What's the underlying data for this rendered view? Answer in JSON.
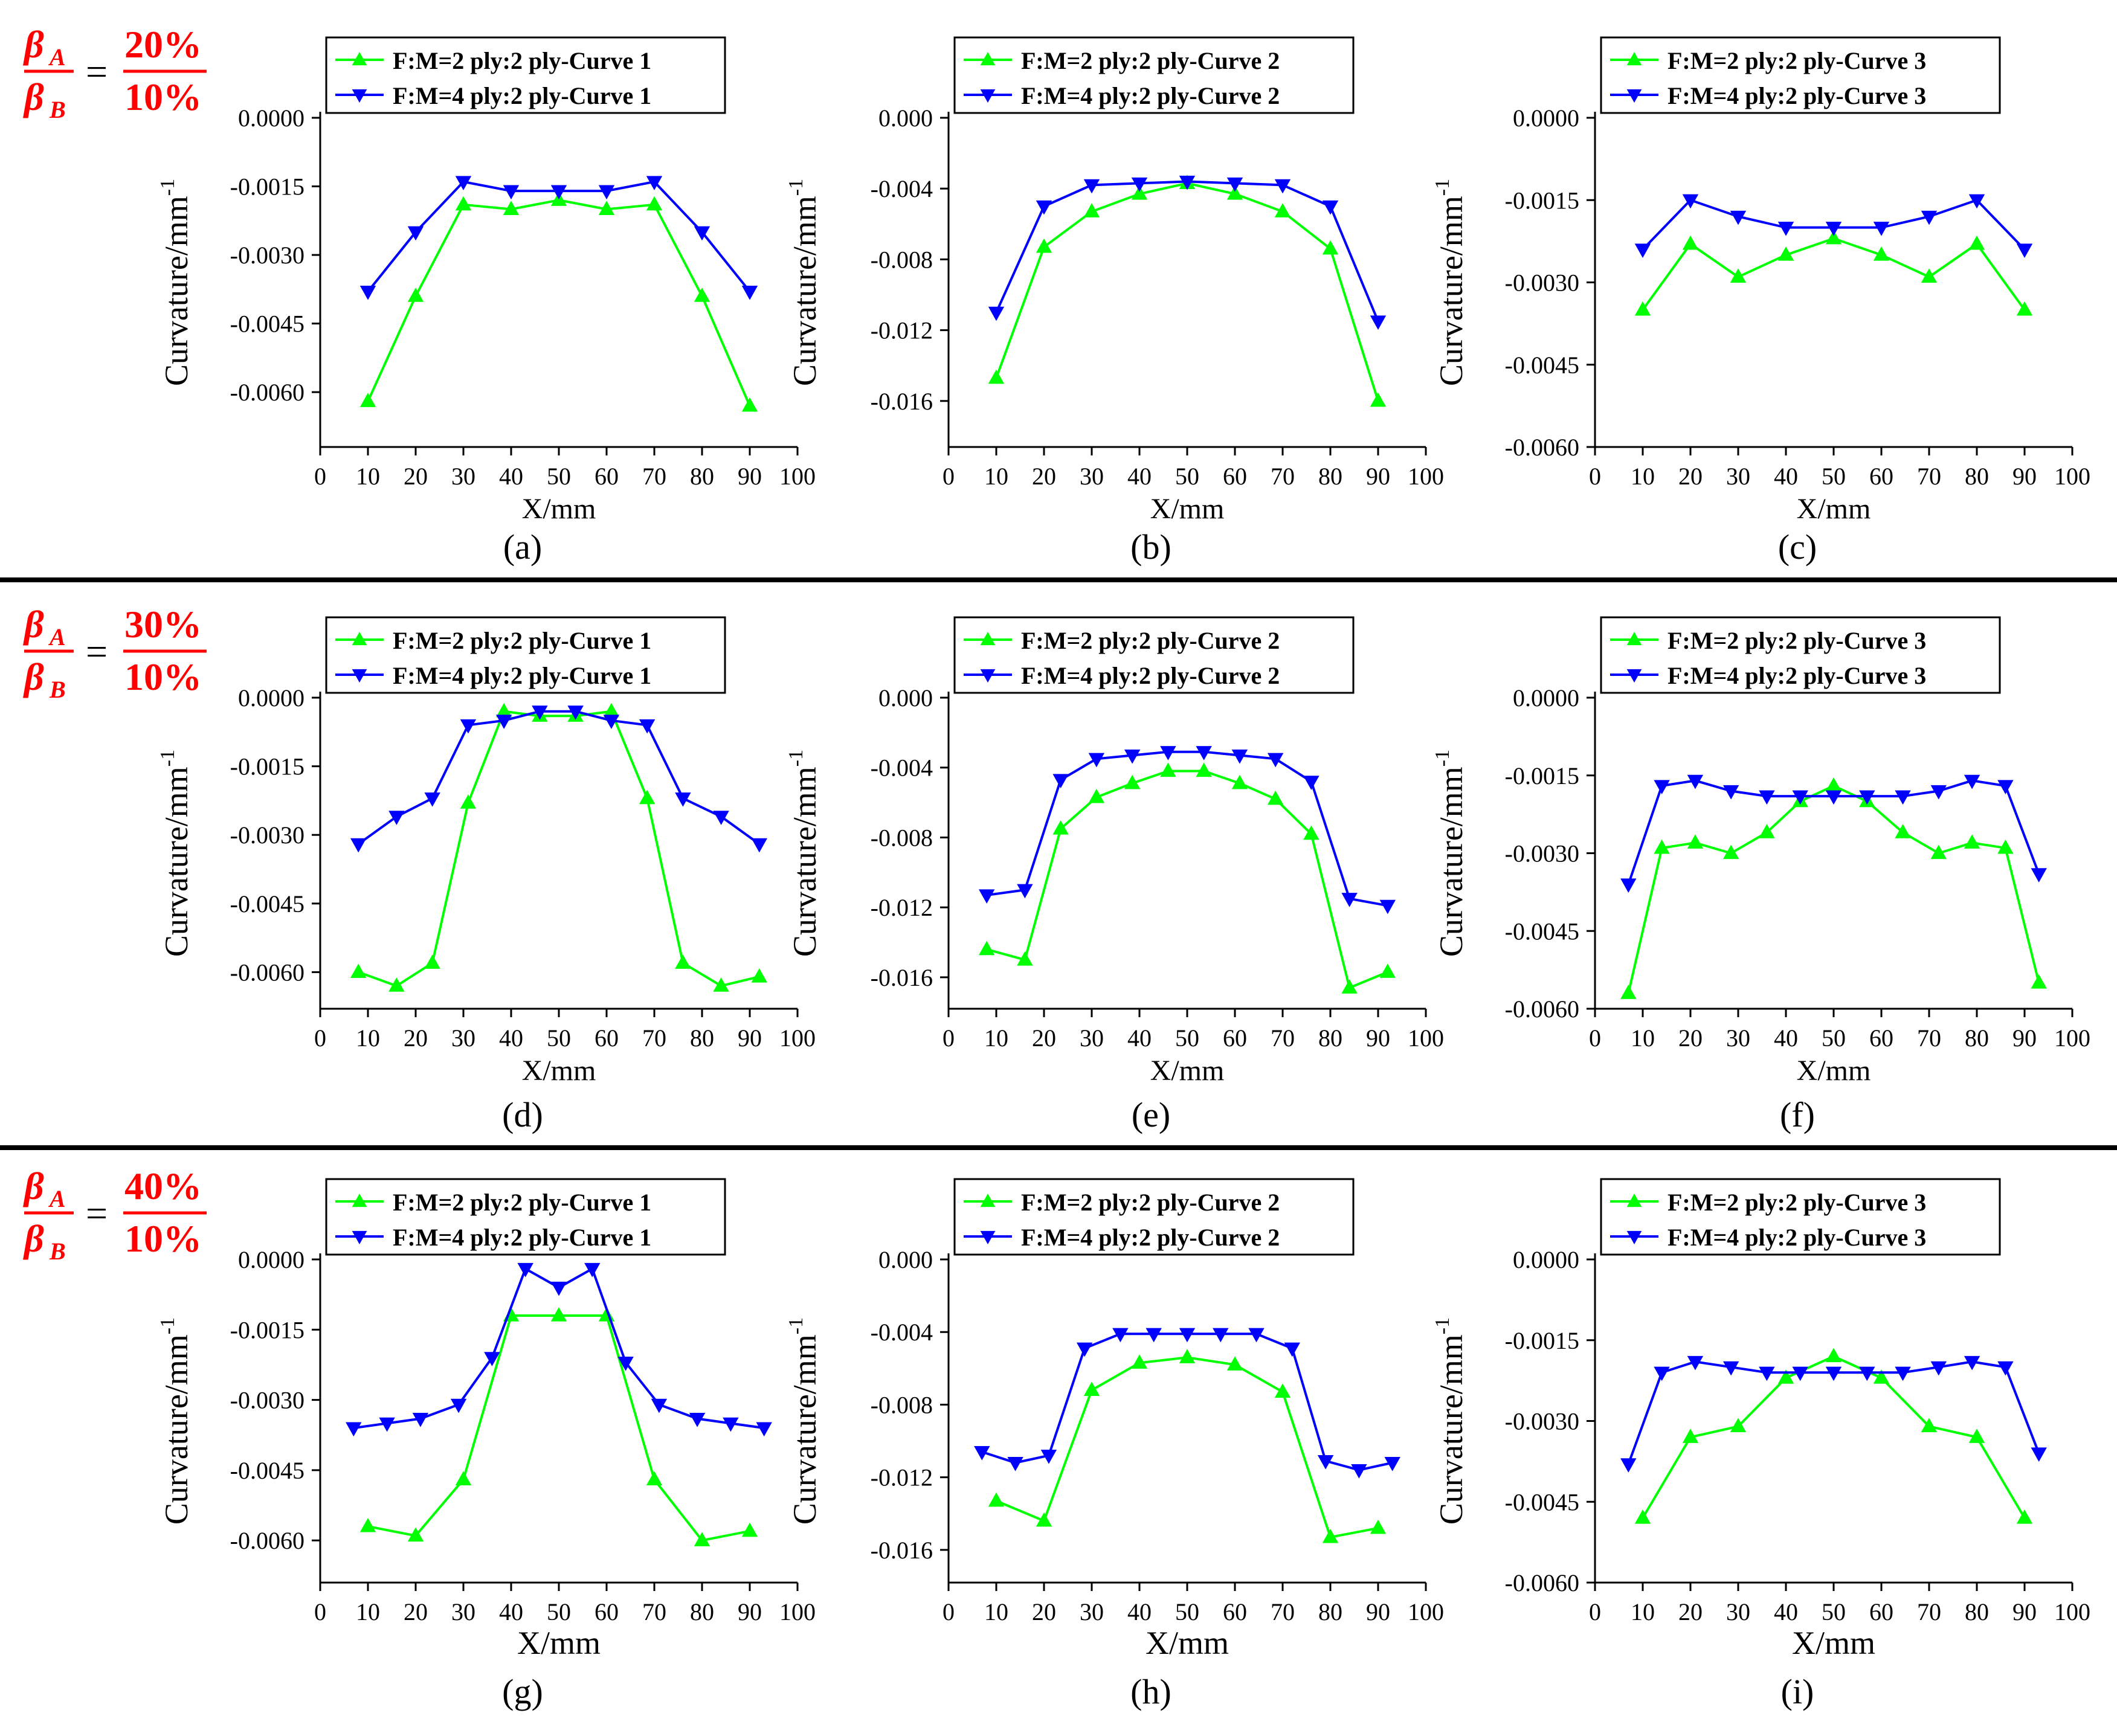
{
  "figure": {
    "rows": [
      {
        "ratio": {
          "num_symbol": "β",
          "num_sub": "A",
          "den_symbol": "β",
          "den_sub": "B",
          "eq": "=",
          "num_value": "20%",
          "den_value": "10%"
        }
      },
      {
        "ratio": {
          "num_symbol": "β",
          "num_sub": "A",
          "den_symbol": "β",
          "den_sub": "B",
          "eq": "=",
          "num_value": "30%",
          "den_value": "10%"
        }
      },
      {
        "ratio": {
          "num_symbol": "β",
          "num_sub": "A",
          "den_symbol": "β",
          "den_sub": "B",
          "eq": "=",
          "num_value": "40%",
          "den_value": "10%"
        }
      }
    ],
    "colors": {
      "green": "#00ff00",
      "blue": "#0000ff",
      "ratio": "#ff0000",
      "axis": "#000000"
    }
  },
  "chart_data": [
    {
      "panel": "(a)",
      "type": "line",
      "xlabel": "X/mm",
      "ylabel": "Curvature/mm",
      "ylabel_sup": "-1",
      "xlim": [
        0,
        100
      ],
      "ylim": [
        -0.0072,
        0.0
      ],
      "xticks": [
        0,
        10,
        20,
        30,
        40,
        50,
        60,
        70,
        80,
        90,
        100
      ],
      "yticks": [
        0.0,
        -0.0015,
        -0.003,
        -0.0045,
        -0.006
      ],
      "ytick_labels": [
        "0.0000",
        "-0.0015",
        "-0.0030",
        "-0.0045",
        "-0.0060"
      ],
      "series": [
        {
          "name": "F:M=2 ply:2 ply-Curve 1",
          "color": "#00ff00",
          "marker": "triangle-up",
          "x": [
            10,
            20,
            30,
            40,
            50,
            60,
            70,
            80,
            90
          ],
          "y": [
            -0.0062,
            -0.0039,
            -0.0019,
            -0.002,
            -0.0018,
            -0.002,
            -0.0019,
            -0.0039,
            -0.0063
          ]
        },
        {
          "name": "F:M=4 ply:2 ply-Curve 1",
          "color": "#0000ff",
          "marker": "triangle-down",
          "x": [
            10,
            20,
            30,
            40,
            50,
            60,
            70,
            80,
            90
          ],
          "y": [
            -0.0038,
            -0.0025,
            -0.0014,
            -0.0016,
            -0.0016,
            -0.0016,
            -0.0014,
            -0.0025,
            -0.0038
          ]
        }
      ]
    },
    {
      "panel": "(b)",
      "type": "line",
      "xlabel": "X/mm",
      "ylabel": "Curvature/mm",
      "ylabel_sup": "-1",
      "xlim": [
        0,
        100
      ],
      "ylim": [
        -0.0186,
        0.0
      ],
      "xticks": [
        0,
        10,
        20,
        30,
        40,
        50,
        60,
        70,
        80,
        90,
        100
      ],
      "yticks": [
        0.0,
        -0.004,
        -0.008,
        -0.012,
        -0.016
      ],
      "ytick_labels": [
        "0.000",
        "-0.004",
        "-0.008",
        "-0.012",
        "-0.016"
      ],
      "series": [
        {
          "name": "F:M=2 ply:2 ply-Curve 2",
          "color": "#00ff00",
          "marker": "triangle-up",
          "x": [
            10,
            20,
            30,
            40,
            50,
            60,
            70,
            80,
            90
          ],
          "y": [
            -0.0147,
            -0.0073,
            -0.0053,
            -0.0043,
            -0.0037,
            -0.0043,
            -0.0053,
            -0.0074,
            -0.016
          ]
        },
        {
          "name": "F:M=4 ply:2 ply-Curve 2",
          "color": "#0000ff",
          "marker": "triangle-down",
          "x": [
            10,
            20,
            30,
            40,
            50,
            60,
            70,
            80,
            90
          ],
          "y": [
            -0.011,
            -0.005,
            -0.0038,
            -0.0037,
            -0.0036,
            -0.0037,
            -0.0038,
            -0.005,
            -0.0115
          ]
        }
      ]
    },
    {
      "panel": "(c)",
      "type": "line",
      "xlabel": "X/mm",
      "ylabel": "Curvature/mm",
      "ylabel_sup": "-1",
      "xlim": [
        0,
        100
      ],
      "ylim": [
        -0.006,
        0.0
      ],
      "xticks": [
        0,
        10,
        20,
        30,
        40,
        50,
        60,
        70,
        80,
        90,
        100
      ],
      "yticks": [
        0.0,
        -0.0015,
        -0.003,
        -0.0045,
        -0.006
      ],
      "ytick_labels": [
        "0.0000",
        "-0.0015",
        "-0.0030",
        "-0.0045",
        "-0.0060"
      ],
      "series": [
        {
          "name": "F:M=2 ply:2 ply-Curve 3",
          "color": "#00ff00",
          "marker": "triangle-up",
          "x": [
            10,
            20,
            30,
            40,
            50,
            60,
            70,
            80,
            90
          ],
          "y": [
            -0.0035,
            -0.0023,
            -0.0029,
            -0.0025,
            -0.0022,
            -0.0025,
            -0.0029,
            -0.0023,
            -0.0035
          ]
        },
        {
          "name": "F:M=4 ply:2 ply-Curve 3",
          "color": "#0000ff",
          "marker": "triangle-down",
          "x": [
            10,
            20,
            30,
            40,
            50,
            60,
            70,
            80,
            90
          ],
          "y": [
            -0.0024,
            -0.0015,
            -0.0018,
            -0.002,
            -0.002,
            -0.002,
            -0.0018,
            -0.0015,
            -0.0024
          ]
        }
      ]
    },
    {
      "panel": "(d)",
      "type": "line",
      "xlabel": "X/mm",
      "ylabel": "Curvature/mm",
      "ylabel_sup": "-1",
      "xlim": [
        0,
        100
      ],
      "ylim": [
        -0.0068,
        0.0
      ],
      "xticks": [
        0,
        10,
        20,
        30,
        40,
        50,
        60,
        70,
        80,
        90,
        100
      ],
      "yticks": [
        0.0,
        -0.0015,
        -0.003,
        -0.0045,
        -0.006
      ],
      "ytick_labels": [
        "0.0000",
        "-0.0015",
        "-0.0030",
        "-0.0045",
        "-0.0060"
      ],
      "series": [
        {
          "name": "F:M=2 ply:2 ply-Curve 1",
          "color": "#00ff00",
          "marker": "triangle-up",
          "x": [
            8,
            16,
            23.5,
            31,
            38.5,
            46,
            53.5,
            61,
            68.5,
            76,
            84,
            92
          ],
          "y": [
            -0.006,
            -0.0063,
            -0.0058,
            -0.0023,
            -0.0003,
            -0.0004,
            -0.0004,
            -0.0003,
            -0.0022,
            -0.0058,
            -0.0063,
            -0.0061
          ]
        },
        {
          "name": "F:M=4 ply:2 ply-Curve 1",
          "color": "#0000ff",
          "marker": "triangle-down",
          "x": [
            8,
            16,
            23.5,
            31,
            38.5,
            46,
            53.5,
            61,
            68.5,
            76,
            84,
            92
          ],
          "y": [
            -0.0032,
            -0.0026,
            -0.0022,
            -0.0006,
            -0.0005,
            -0.0003,
            -0.0003,
            -0.0005,
            -0.0006,
            -0.0022,
            -0.0026,
            -0.0032
          ]
        }
      ]
    },
    {
      "panel": "(e)",
      "type": "line",
      "xlabel": "X/mm",
      "ylabel": "Curvature/mm",
      "ylabel_sup": "-1",
      "xlim": [
        0,
        100
      ],
      "ylim": [
        -0.0178,
        0.0
      ],
      "xticks": [
        0,
        10,
        20,
        30,
        40,
        50,
        60,
        70,
        80,
        90,
        100
      ],
      "yticks": [
        0.0,
        -0.004,
        -0.008,
        -0.012,
        -0.016
      ],
      "ytick_labels": [
        "0.000",
        "-0.004",
        "-0.008",
        "-0.012",
        "-0.016"
      ],
      "series": [
        {
          "name": "F:M=2 ply:2 ply-Curve 2",
          "color": "#00ff00",
          "marker": "triangle-up",
          "x": [
            8,
            16,
            23.5,
            31,
            38.5,
            46,
            53.5,
            61,
            68.5,
            76,
            84,
            92
          ],
          "y": [
            -0.0144,
            -0.015,
            -0.0075,
            -0.0057,
            -0.0049,
            -0.0042,
            -0.0042,
            -0.0049,
            -0.0058,
            -0.0078,
            -0.0166,
            -0.0157
          ]
        },
        {
          "name": "F:M=4 ply:2 ply-Curve 2",
          "color": "#0000ff",
          "marker": "triangle-down",
          "x": [
            8,
            16,
            23.5,
            31,
            38.5,
            46,
            53.5,
            61,
            68.5,
            76,
            84,
            92
          ],
          "y": [
            -0.0113,
            -0.011,
            -0.0047,
            -0.0035,
            -0.0033,
            -0.0031,
            -0.0031,
            -0.0033,
            -0.0035,
            -0.0048,
            -0.0115,
            -0.0119
          ]
        }
      ]
    },
    {
      "panel": "(f)",
      "type": "line",
      "xlabel": "X/mm",
      "ylabel": "Curvature/mm",
      "ylabel_sup": "-1",
      "xlim": [
        0,
        100
      ],
      "ylim": [
        -0.006,
        0.0
      ],
      "xticks": [
        0,
        10,
        20,
        30,
        40,
        50,
        60,
        70,
        80,
        90,
        100
      ],
      "yticks": [
        0.0,
        -0.0015,
        -0.003,
        -0.0045,
        -0.006
      ],
      "ytick_labels": [
        "0.0000",
        "-0.0015",
        "-0.0030",
        "-0.0045",
        "-0.0060"
      ],
      "series": [
        {
          "name": "F:M=2 ply:2 ply-Curve 3",
          "color": "#00ff00",
          "marker": "triangle-up",
          "x": [
            7,
            14,
            21,
            28.5,
            36,
            43,
            50,
            57,
            64.5,
            72,
            79,
            86,
            93
          ],
          "y": [
            -0.0057,
            -0.0029,
            -0.0028,
            -0.003,
            -0.0026,
            -0.002,
            -0.0017,
            -0.002,
            -0.0026,
            -0.003,
            -0.0028,
            -0.0029,
            -0.0055
          ]
        },
        {
          "name": "F:M=4 ply:2 ply-Curve 3",
          "color": "#0000ff",
          "marker": "triangle-down",
          "x": [
            7,
            14,
            21,
            28.5,
            36,
            43,
            50,
            57,
            64.5,
            72,
            79,
            86,
            93
          ],
          "y": [
            -0.0036,
            -0.0017,
            -0.0016,
            -0.0018,
            -0.0019,
            -0.0019,
            -0.0019,
            -0.0019,
            -0.0019,
            -0.0018,
            -0.0016,
            -0.0017,
            -0.0034
          ]
        }
      ]
    },
    {
      "panel": "(g)",
      "type": "line",
      "xlabel": "X/mm",
      "ylabel": "Curvature/mm",
      "ylabel_sup": "-1",
      "xlim": [
        0,
        100
      ],
      "ylim": [
        -0.0069,
        0.0
      ],
      "xticks": [
        0,
        10,
        20,
        30,
        40,
        50,
        60,
        70,
        80,
        90,
        100
      ],
      "yticks": [
        0.0,
        -0.0015,
        -0.003,
        -0.0045,
        -0.006
      ],
      "ytick_labels": [
        "0.0000",
        "-0.0015",
        "-0.0030",
        "-0.0045",
        "-0.0060"
      ],
      "series": [
        {
          "name": "F:M=2 ply:2 ply-Curve 1",
          "color": "#00ff00",
          "marker": "triangle-up",
          "x": [
            10,
            20,
            30,
            40,
            50,
            60,
            70,
            80,
            90
          ],
          "y": [
            -0.0057,
            -0.0059,
            -0.0047,
            -0.0012,
            -0.0012,
            -0.0012,
            -0.0047,
            -0.006,
            -0.0058
          ]
        },
        {
          "name": "F:M=4 ply:2 ply-Curve 1",
          "color": "#0000ff",
          "marker": "triangle-down",
          "x": [
            7,
            14,
            21,
            29,
            36,
            43,
            50,
            57,
            64,
            71,
            79,
            86,
            93
          ],
          "y": [
            -0.0036,
            -0.0035,
            -0.0034,
            -0.0031,
            -0.0021,
            -0.0002,
            -0.0006,
            -0.0002,
            -0.0022,
            -0.0031,
            -0.0034,
            -0.0035,
            -0.0036
          ]
        }
      ]
    },
    {
      "panel": "(h)",
      "type": "line",
      "xlabel": "X/mm",
      "ylabel": "Curvature/mm",
      "ylabel_sup": "-1",
      "xlim": [
        0,
        100
      ],
      "ylim": [
        -0.0178,
        0.0
      ],
      "xticks": [
        0,
        10,
        20,
        30,
        40,
        50,
        60,
        70,
        80,
        90,
        100
      ],
      "yticks": [
        0.0,
        -0.004,
        -0.008,
        -0.012,
        -0.016
      ],
      "ytick_labels": [
        "0.000",
        "-0.004",
        "-0.008",
        "-0.012",
        "-0.016"
      ],
      "series": [
        {
          "name": "F:M=2 ply:2 ply-Curve 2",
          "color": "#00ff00",
          "marker": "triangle-up",
          "x": [
            10,
            20,
            30,
            40,
            50,
            60,
            70,
            80,
            90
          ],
          "y": [
            -0.0133,
            -0.0144,
            -0.0072,
            -0.0057,
            -0.0054,
            -0.0058,
            -0.0073,
            -0.0153,
            -0.0148
          ]
        },
        {
          "name": "F:M=4 ply:2 ply-Curve 2",
          "color": "#0000ff",
          "marker": "triangle-down",
          "x": [
            7,
            14,
            21,
            28.5,
            36,
            43,
            50,
            57,
            64.5,
            72,
            79,
            86,
            93
          ],
          "y": [
            -0.0106,
            -0.0112,
            -0.0108,
            -0.0049,
            -0.0041,
            -0.0041,
            -0.0041,
            -0.0041,
            -0.0041,
            -0.0049,
            -0.0111,
            -0.0116,
            -0.0112
          ]
        }
      ]
    },
    {
      "panel": "(i)",
      "type": "line",
      "xlabel": "X/mm",
      "ylabel": "Curvature/mm",
      "ylabel_sup": "-1",
      "xlim": [
        0,
        100
      ],
      "ylim": [
        -0.006,
        0.0
      ],
      "xticks": [
        0,
        10,
        20,
        30,
        40,
        50,
        60,
        70,
        80,
        90,
        100
      ],
      "yticks": [
        0.0,
        -0.0015,
        -0.003,
        -0.0045,
        -0.006
      ],
      "ytick_labels": [
        "0.0000",
        "-0.0015",
        "-0.0030",
        "-0.0045",
        "-0.0060"
      ],
      "series": [
        {
          "name": "F:M=2 ply:2 ply-Curve 3",
          "color": "#00ff00",
          "marker": "triangle-up",
          "x": [
            10,
            20,
            30,
            40,
            50,
            60,
            70,
            80,
            90
          ],
          "y": [
            -0.0048,
            -0.0033,
            -0.0031,
            -0.0022,
            -0.0018,
            -0.0022,
            -0.0031,
            -0.0033,
            -0.0048
          ]
        },
        {
          "name": "F:M=4 ply:2 ply-Curve 3",
          "color": "#0000ff",
          "marker": "triangle-down",
          "x": [
            7,
            14,
            21,
            28.5,
            36,
            43,
            50,
            57,
            64.5,
            72,
            79,
            86,
            93
          ],
          "y": [
            -0.0038,
            -0.0021,
            -0.0019,
            -0.002,
            -0.0021,
            -0.0021,
            -0.0021,
            -0.0021,
            -0.0021,
            -0.002,
            -0.0019,
            -0.002,
            -0.0036
          ]
        }
      ]
    }
  ]
}
